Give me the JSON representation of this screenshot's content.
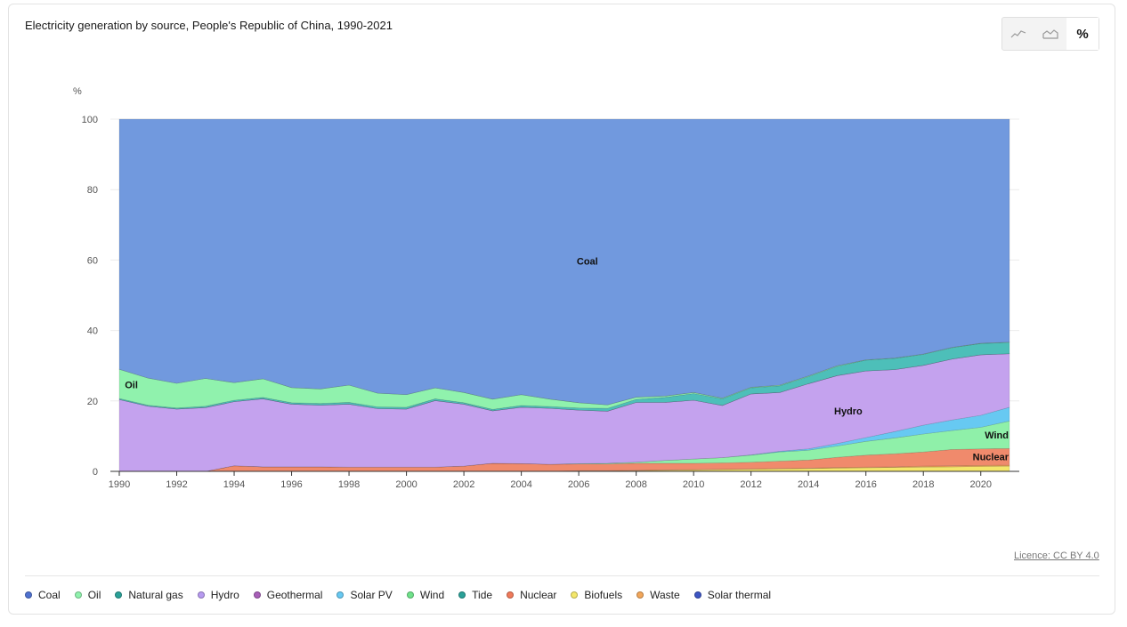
{
  "header": {
    "title": "Electricity generation by source, People's Republic of China, 1990-2021",
    "view_buttons": [
      {
        "icon": "line-chart-icon",
        "label": ""
      },
      {
        "icon": "area-chart-icon",
        "label": ""
      },
      {
        "icon": "percent-icon",
        "label": "%"
      }
    ],
    "active_view": "%"
  },
  "footer": {
    "licence": "Licence: CC BY 4.0"
  },
  "chart_data": {
    "type": "area",
    "stacked": "percent",
    "ylabel": "%",
    "ylim": [
      0,
      100
    ],
    "yticks": [
      0,
      20,
      40,
      60,
      80,
      100
    ],
    "xticks": [
      1990,
      1992,
      1994,
      1996,
      1998,
      2000,
      2002,
      2004,
      2006,
      2008,
      2010,
      2012,
      2014,
      2016,
      2018,
      2020
    ],
    "grid": true,
    "legend_position": "bottom",
    "x": [
      1990,
      1991,
      1992,
      1993,
      1994,
      1995,
      1996,
      1997,
      1998,
      1999,
      2000,
      2001,
      2002,
      2003,
      2004,
      2005,
      2006,
      2007,
      2008,
      2009,
      2010,
      2011,
      2012,
      2013,
      2014,
      2015,
      2016,
      2017,
      2018,
      2019,
      2020,
      2021
    ],
    "series": [
      {
        "name": "Biofuels",
        "color": "#f4e76b",
        "label": "",
        "values": [
          0,
          0,
          0,
          0,
          0,
          0,
          0,
          0,
          0,
          0,
          0,
          0,
          0,
          0,
          0,
          0,
          0.1,
          0.1,
          0.2,
          0.3,
          0.4,
          0.5,
          0.6,
          0.7,
          0.8,
          0.9,
          1.0,
          1.1,
          1.2,
          1.3,
          1.4,
          1.5
        ]
      },
      {
        "name": "Waste",
        "color": "#f2a65a",
        "label": "",
        "values": [
          0,
          0,
          0,
          0,
          0,
          0,
          0,
          0,
          0,
          0,
          0,
          0,
          0,
          0,
          0,
          0,
          0.1,
          0.1,
          0.1,
          0.1,
          0.1,
          0.1,
          0.1,
          0.1,
          0.1,
          0.2,
          0.2,
          0.2,
          0.3,
          0.3,
          0.3,
          0.3
        ]
      },
      {
        "name": "Nuclear",
        "color": "#f08a6c",
        "label": "Nuclear",
        "values": [
          0,
          0,
          0,
          0,
          1.6,
          1.3,
          1.3,
          1.3,
          1.2,
          1.2,
          1.2,
          1.2,
          1.5,
          2.3,
          2.2,
          2.0,
          1.9,
          1.9,
          2.0,
          1.9,
          1.8,
          1.8,
          1.9,
          2.1,
          2.3,
          2.9,
          3.4,
          3.7,
          4.0,
          4.6,
          4.7,
          4.7
        ]
      },
      {
        "name": "Wind",
        "color": "#8ff0a9",
        "label": "Wind",
        "values": [
          0,
          0,
          0,
          0,
          0,
          0,
          0,
          0,
          0,
          0,
          0,
          0,
          0,
          0,
          0,
          0,
          0.1,
          0.2,
          0.3,
          0.8,
          1.2,
          1.5,
          2.0,
          2.6,
          2.8,
          3.2,
          3.9,
          4.5,
          5.1,
          5.4,
          6.1,
          7.8
        ]
      },
      {
        "name": "Solar PV",
        "color": "#67c9f2",
        "label": "",
        "values": [
          0,
          0,
          0,
          0,
          0,
          0,
          0,
          0,
          0,
          0,
          0,
          0,
          0,
          0,
          0,
          0,
          0,
          0,
          0,
          0,
          0,
          0,
          0.1,
          0.2,
          0.4,
          0.7,
          1.1,
          1.8,
          2.5,
          3.0,
          3.4,
          3.9
        ]
      },
      {
        "name": "Hydro",
        "color": "#c4a2ee",
        "label": "Hydro",
        "values": [
          20.4,
          18.5,
          17.7,
          18.1,
          18.2,
          19.3,
          17.8,
          17.5,
          17.9,
          16.6,
          16.5,
          18.9,
          17.6,
          14.9,
          16.0,
          15.9,
          15.2,
          14.8,
          16.9,
          16.5,
          16.7,
          14.8,
          17.3,
          16.7,
          18.5,
          19.3,
          18.9,
          17.6,
          17.0,
          17.3,
          17.2,
          15.2
        ]
      },
      {
        "name": "Geothermal",
        "color": "#b46fd1",
        "label": "",
        "values": [
          0,
          0,
          0,
          0,
          0,
          0,
          0,
          0,
          0,
          0,
          0,
          0,
          0,
          0,
          0,
          0,
          0,
          0,
          0,
          0,
          0,
          0,
          0,
          0,
          0,
          0,
          0,
          0,
          0,
          0,
          0,
          0
        ]
      },
      {
        "name": "Tide",
        "color": "#2aa198",
        "label": "",
        "values": [
          0,
          0,
          0,
          0,
          0,
          0,
          0,
          0,
          0,
          0,
          0,
          0,
          0,
          0,
          0,
          0,
          0,
          0,
          0,
          0,
          0,
          0,
          0,
          0,
          0,
          0,
          0,
          0,
          0,
          0,
          0,
          0
        ]
      },
      {
        "name": "Natural gas",
        "color": "#4dbfb9",
        "label": "",
        "values": [
          0.3,
          0.3,
          0.3,
          0.4,
          0.4,
          0.4,
          0.4,
          0.5,
          0.5,
          0.5,
          0.5,
          0.5,
          0.4,
          0.4,
          0.5,
          0.5,
          0.6,
          0.8,
          0.9,
          1.4,
          1.9,
          1.9,
          1.7,
          1.9,
          2.0,
          2.6,
          3.1,
          3.2,
          3.1,
          3.2,
          3.2,
          3.2
        ]
      },
      {
        "name": "Oil",
        "color": "#90f2ad",
        "label": "Oil",
        "values": [
          8.3,
          7.7,
          7.0,
          7.9,
          5.0,
          5.3,
          4.3,
          4.1,
          4.9,
          3.9,
          3.6,
          3.1,
          2.9,
          2.9,
          3.1,
          2.1,
          1.5,
          1.0,
          0.6,
          0.4,
          0.3,
          0.2,
          0.2,
          0.2,
          0.2,
          0.2,
          0.1,
          0.1,
          0.1,
          0.1,
          0.1,
          0.1
        ]
      },
      {
        "name": "Solar thermal",
        "color": "#3d55c4",
        "label": "",
        "values": [
          0,
          0,
          0,
          0,
          0,
          0,
          0,
          0,
          0,
          0,
          0,
          0,
          0,
          0,
          0,
          0,
          0,
          0,
          0,
          0,
          0,
          0,
          0,
          0,
          0,
          0,
          0,
          0,
          0,
          0,
          0,
          0
        ]
      },
      {
        "name": "Coal",
        "color": "#7199de",
        "label": "Coal",
        "values": [
          71.0,
          73.5,
          75.0,
          73.6,
          74.8,
          73.7,
          76.2,
          76.6,
          75.5,
          77.8,
          78.2,
          76.3,
          77.6,
          79.5,
          78.2,
          79.5,
          80.5,
          81.1,
          78.7,
          78.6,
          77.6,
          79.2,
          76.1,
          75.5,
          72.9,
          70.0,
          68.3,
          67.8,
          66.7,
          64.8,
          63.6,
          63.3
        ]
      }
    ]
  },
  "legend": [
    {
      "name": "Coal",
      "color": "#4f72d0"
    },
    {
      "name": "Oil",
      "color": "#90f2ad"
    },
    {
      "name": "Natural gas",
      "color": "#2aa198"
    },
    {
      "name": "Hydro",
      "color": "#b79af0"
    },
    {
      "name": "Geothermal",
      "color": "#a85fb8"
    },
    {
      "name": "Solar PV",
      "color": "#67c9f2"
    },
    {
      "name": "Wind",
      "color": "#6fe28a"
    },
    {
      "name": "Tide",
      "color": "#2aa198"
    },
    {
      "name": "Nuclear",
      "color": "#f07a5a"
    },
    {
      "name": "Biofuels",
      "color": "#f4e76b"
    },
    {
      "name": "Waste",
      "color": "#f2a65a"
    },
    {
      "name": "Solar thermal",
      "color": "#3d55c4"
    }
  ]
}
